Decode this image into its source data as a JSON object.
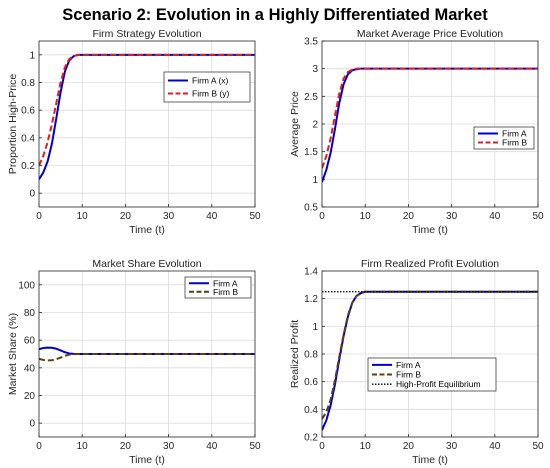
{
  "figure": {
    "title": "Scenario 2: Evolution in a Highly Differentiated Market"
  },
  "colors": {
    "blue": "#0000cc",
    "red": "#e41a1c",
    "brown": "#5c3d14",
    "black": "#000000",
    "grid": "#dcdcdc"
  },
  "chart_data": [
    {
      "type": "line",
      "title": "Firm Strategy Evolution",
      "xlabel": "Time (t)",
      "ylabel": "Proportion High-Price",
      "xlim": [
        0,
        50
      ],
      "ylim": [
        -0.1,
        1.1
      ],
      "xticks": [
        0,
        10,
        20,
        30,
        40,
        50
      ],
      "yticks": [
        0,
        0.2,
        0.4,
        0.6,
        0.8,
        1
      ],
      "ytick_labels": [
        "0",
        "0.2",
        "0.4",
        "0.6",
        "0.8",
        "1"
      ],
      "grid": true,
      "legend_position": "top-right",
      "series": [
        {
          "name": "Firm A (x)",
          "color": "#0000cc",
          "style": "solid",
          "x": [
            0,
            1,
            2,
            3,
            4,
            5,
            6,
            7,
            8,
            9,
            10,
            11,
            12,
            15,
            20,
            30,
            40,
            50
          ],
          "y": [
            0.1,
            0.15,
            0.23,
            0.36,
            0.54,
            0.73,
            0.88,
            0.96,
            0.99,
            1.0,
            1.0,
            1.0,
            1.0,
            1.0,
            1.0,
            1.0,
            1.0,
            1.0
          ]
        },
        {
          "name": "Firm B (y)",
          "color": "#e41a1c",
          "style": "dashed",
          "x": [
            0,
            1,
            2,
            3,
            4,
            5,
            6,
            7,
            8,
            9,
            10,
            11,
            12,
            15,
            20,
            30,
            40,
            50
          ],
          "y": [
            0.2,
            0.27,
            0.37,
            0.5,
            0.65,
            0.8,
            0.91,
            0.97,
            0.99,
            1.0,
            1.0,
            1.0,
            1.0,
            1.0,
            1.0,
            1.0,
            1.0,
            1.0
          ]
        }
      ]
    },
    {
      "type": "line",
      "title": "Market Average Price Evolution",
      "xlabel": "Time (t)",
      "ylabel": "Average Price",
      "xlim": [
        0,
        50
      ],
      "ylim": [
        0.5,
        3.5
      ],
      "xticks": [
        0,
        10,
        20,
        30,
        40,
        50
      ],
      "yticks": [
        0.5,
        1,
        1.5,
        2,
        2.5,
        3,
        3.5
      ],
      "ytick_labels": [
        "0.5",
        "1",
        "1.5",
        "2",
        "2.5",
        "3",
        "3.5"
      ],
      "grid": true,
      "legend_position": "middle-right",
      "series": [
        {
          "name": "Firm A",
          "color": "#0000cc",
          "style": "solid",
          "x": [
            0,
            1,
            2,
            3,
            4,
            5,
            6,
            7,
            8,
            9,
            10,
            11,
            12,
            15,
            20,
            30,
            40,
            50
          ],
          "y": [
            0.95,
            1.17,
            1.48,
            1.91,
            2.38,
            2.72,
            2.9,
            2.97,
            2.99,
            3.0,
            3.0,
            3.0,
            3.0,
            3.0,
            3.0,
            3.0,
            3.0,
            3.0
          ]
        },
        {
          "name": "Firm B",
          "color": "#e41a1c",
          "style": "dashed",
          "x": [
            0,
            1,
            2,
            3,
            4,
            5,
            6,
            7,
            8,
            9,
            10,
            11,
            12,
            15,
            20,
            30,
            40,
            50
          ],
          "y": [
            1.2,
            1.42,
            1.74,
            2.15,
            2.55,
            2.82,
            2.94,
            2.98,
            3.0,
            3.0,
            3.0,
            3.0,
            3.0,
            3.0,
            3.0,
            3.0,
            3.0,
            3.0
          ]
        }
      ]
    },
    {
      "type": "line",
      "title": "Market Share Evolution",
      "xlabel": "Time (t)",
      "ylabel": "Market Share (%)",
      "xlim": [
        0,
        50
      ],
      "ylim": [
        -10,
        110
      ],
      "xticks": [
        0,
        10,
        20,
        30,
        40,
        50
      ],
      "yticks": [
        0,
        20,
        40,
        60,
        80,
        100
      ],
      "ytick_labels": [
        "0",
        "20",
        "40",
        "60",
        "80",
        "100"
      ],
      "grid": true,
      "legend_position": "top-right",
      "series": [
        {
          "name": "Firm A",
          "color": "#0000cc",
          "style": "solid",
          "x": [
            0,
            1,
            2,
            3,
            4,
            5,
            6,
            7,
            8,
            9,
            10,
            12,
            15,
            20,
            30,
            40,
            50
          ],
          "y": [
            53.5,
            54.3,
            54.6,
            54.5,
            53.8,
            52.6,
            51.3,
            50.4,
            50.1,
            50.0,
            50.0,
            50.0,
            50.0,
            50.0,
            50.0,
            50.0,
            50.0
          ]
        },
        {
          "name": "Firm B",
          "color": "#5c3d14",
          "style": "dashed",
          "x": [
            0,
            1,
            2,
            3,
            4,
            5,
            6,
            7,
            8,
            9,
            10,
            12,
            15,
            20,
            30,
            40,
            50
          ],
          "y": [
            46.5,
            45.7,
            45.4,
            45.5,
            46.2,
            47.4,
            48.7,
            49.6,
            49.9,
            50.0,
            50.0,
            50.0,
            50.0,
            50.0,
            50.0,
            50.0,
            50.0
          ]
        }
      ]
    },
    {
      "type": "line",
      "title": "Firm Realized Profit Evolution",
      "xlabel": "Time (t)",
      "ylabel": "Realized Profit",
      "xlim": [
        0,
        50
      ],
      "ylim": [
        0.2,
        1.4
      ],
      "xticks": [
        0,
        10,
        20,
        30,
        40,
        50
      ],
      "yticks": [
        0.2,
        0.4,
        0.6,
        0.8,
        1,
        1.2,
        1.4
      ],
      "ytick_labels": [
        "0.2",
        "0.4",
        "0.6",
        "0.8",
        "1",
        "1.2",
        "1.4"
      ],
      "grid": true,
      "legend_position": "bottom-center",
      "series": [
        {
          "name": "Firm A",
          "color": "#0000cc",
          "style": "solid",
          "x": [
            0,
            1,
            2,
            3,
            4,
            5,
            6,
            7,
            8,
            9,
            10,
            11,
            12,
            15,
            20,
            30,
            40,
            50
          ],
          "y": [
            0.25,
            0.32,
            0.43,
            0.58,
            0.76,
            0.93,
            1.07,
            1.17,
            1.22,
            1.24,
            1.25,
            1.25,
            1.25,
            1.25,
            1.25,
            1.25,
            1.25,
            1.25
          ]
        },
        {
          "name": "Firm B",
          "color": "#5c3d14",
          "style": "dashed",
          "x": [
            0,
            1,
            2,
            3,
            4,
            5,
            6,
            7,
            8,
            9,
            10,
            11,
            12,
            15,
            20,
            30,
            40,
            50
          ],
          "y": [
            0.33,
            0.38,
            0.47,
            0.61,
            0.78,
            0.94,
            1.08,
            1.17,
            1.22,
            1.24,
            1.25,
            1.25,
            1.25,
            1.25,
            1.25,
            1.25,
            1.25,
            1.25
          ]
        },
        {
          "name": "High-Profit Equilibrium",
          "color": "#000000",
          "style": "dotted",
          "x": [
            0,
            50
          ],
          "y": [
            1.25,
            1.25
          ]
        }
      ]
    }
  ]
}
